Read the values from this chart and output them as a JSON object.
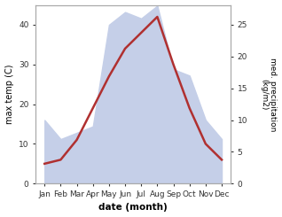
{
  "months": [
    "Jan",
    "Feb",
    "Mar",
    "Apr",
    "May",
    "Jun",
    "Jul",
    "Aug",
    "Sep",
    "Oct",
    "Nov",
    "Dec"
  ],
  "temperature": [
    5,
    6,
    11,
    19,
    27,
    34,
    38,
    42,
    30,
    19,
    10,
    6
  ],
  "precipitation": [
    10,
    7,
    8,
    9,
    25,
    27,
    26,
    28,
    18,
    17,
    10,
    7
  ],
  "temp_color": "#b03030",
  "precip_fill": "#c5cfe8",
  "ylabel_left": "max temp (C)",
  "ylabel_right": "med. precipitation\n(kg/m2)",
  "xlabel": "date (month)",
  "ylim_left": [
    0,
    45
  ],
  "ylim_right": [
    0,
    28.125
  ],
  "yticks_left": [
    0,
    10,
    20,
    30,
    40
  ],
  "yticks_right": [
    0,
    5,
    10,
    15,
    20,
    25
  ],
  "bg_color": "#ffffff"
}
